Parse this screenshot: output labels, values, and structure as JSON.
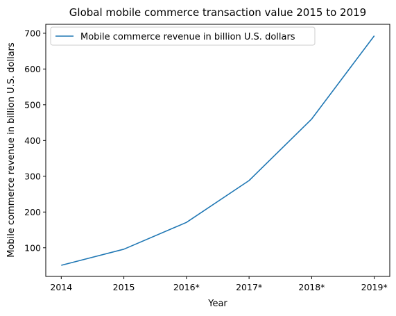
{
  "chart_data": {
    "type": "line",
    "title": "Global mobile commerce transaction value 2015 to 2019",
    "xlabel": "Year",
    "ylabel": "Mobile commerce revenue in billion U.S. dollars",
    "categories": [
      "2014",
      "2015",
      "2016*",
      "2017*",
      "2018*",
      "2019*"
    ],
    "series": [
      {
        "name": "Mobile commerce revenue in billion U.S. dollars",
        "values": [
          51.0,
          96.0,
          171.0,
          288.0,
          460.0,
          693.0
        ],
        "color": "#1f77b4"
      }
    ],
    "yticks": [
      100,
      200,
      300,
      400,
      500,
      600,
      700
    ],
    "ylim": [
      19.9,
      725.0
    ],
    "legend": "upper-left",
    "grid": false
  }
}
